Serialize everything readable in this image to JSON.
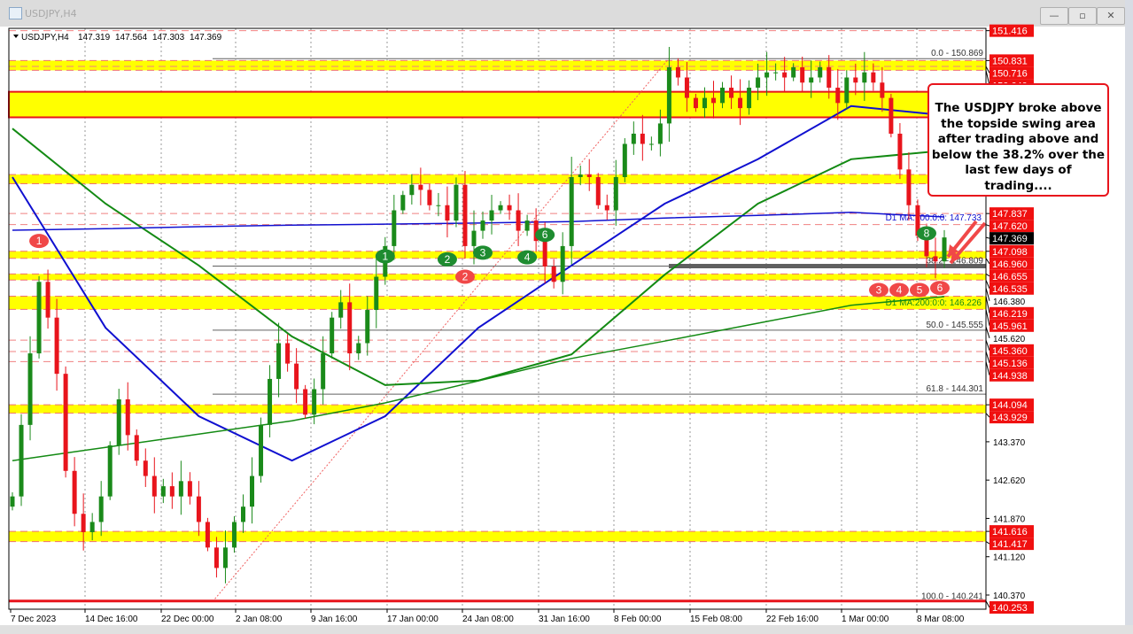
{
  "window": {
    "title": "USDJPY,H4",
    "buttons": {
      "minimize": "—",
      "maximize": "▫",
      "close": "✕"
    }
  },
  "header": {
    "symbol": "USDJPY,H4",
    "open": "147.319",
    "high": "147.564",
    "low": "147.303",
    "close": "147.369"
  },
  "annotation": "The USDJPY broke above the topside swing area after trading above and below the 38.2% over the last few days of trading....",
  "colors": {
    "bull": "#1a8a1a",
    "bear": "#e8141c",
    "ma_h4_blue": "#1010d0",
    "ma_h4_green": "#138a13",
    "zone": "#ffff00",
    "level": "#e8141c",
    "fib": "#606060"
  },
  "chart_data": {
    "type": "candlestick",
    "x_tick_labels": [
      "7 Dec 2023",
      "14 Dec 16:00",
      "22 Dec 00:00",
      "2 Jan 08:00",
      "9 Jan 16:00",
      "17 Jan 00:00",
      "24 Jan 08:00",
      "31 Jan 16:00",
      "8 Feb 00:00",
      "15 Feb 08:00",
      "22 Feb 16:00",
      "1 Mar 00:00",
      "8 Mar 08:00"
    ],
    "y_range": [
      140.0,
      151.7
    ],
    "y_tick_labels": [
      "145.620",
      "143.370",
      "142.620",
      "141.870",
      "141.120",
      "140.370",
      "146.380"
    ],
    "current_price": "147.369",
    "closes": [
      142.3,
      143.7,
      145.1,
      146.5,
      145.8,
      144.7,
      142.8,
      141.96,
      141.6,
      141.8,
      142.3,
      143.3,
      144.2,
      143.5,
      143.0,
      142.7,
      142.3,
      142.5,
      142.3,
      142.6,
      142.3,
      141.8,
      141.3,
      140.9,
      141.3,
      141.8,
      142.1,
      142.7,
      143.7,
      144.6,
      145.3,
      144.9,
      144.4,
      143.9,
      144.4,
      145.1,
      145.8,
      146.1,
      145.1,
      145.3,
      145.95,
      146.6,
      147.2,
      147.9,
      148.2,
      148.4,
      148.3,
      148.0,
      148.0,
      147.7,
      148.4,
      147.2,
      147.5,
      147.7,
      147.9,
      148.0,
      147.9,
      147.5,
      147.7,
      147.3,
      146.8,
      146.5,
      147.2,
      148.55,
      148.6,
      148.55,
      148.0,
      147.9,
      148.55,
      149.2,
      149.4,
      149.2,
      149.2,
      149.6,
      150.7,
      150.5,
      150.1,
      149.9,
      150.1,
      150.0,
      150.3,
      150.1,
      149.9,
      150.3,
      150.5,
      150.6,
      150.6,
      150.5,
      150.7,
      150.4,
      150.5,
      150.7,
      150.3,
      150.0,
      150.5,
      150.4,
      150.6,
      150.4,
      150.1,
      149.4,
      148.7,
      148.0,
      147.4,
      147.0,
      146.9,
      147.369
    ],
    "moving_averages": [
      {
        "name": "",
        "color": "#1010d0",
        "values": [
          148.55,
          145.6,
          143.87,
          143.0,
          143.87,
          145.6,
          146.82,
          148.03,
          148.9,
          149.94,
          149.76
        ]
      },
      {
        "name": "",
        "color": "#138a13",
        "values": [
          149.5,
          148.03,
          146.82,
          145.43,
          144.48,
          144.57,
          145.08,
          146.64,
          148.03,
          148.9,
          149.07
        ]
      },
      {
        "name": "D1 MA:100:0:0: 147.733",
        "color": "#1010d0",
        "values": [
          147.51,
          147.54,
          147.58,
          147.61,
          147.63,
          147.65,
          147.68,
          147.75,
          147.8,
          147.86,
          147.77
        ]
      },
      {
        "name": "D1 MA:200:0:0: 146.226",
        "color": "#138a13",
        "values": [
          143.0,
          143.26,
          143.52,
          143.78,
          144.13,
          144.56,
          145.0,
          145.34,
          145.69,
          146.04,
          146.21
        ]
      }
    ],
    "zones": [
      {
        "top": 150.831,
        "bottom": 150.64
      },
      {
        "top": 150.22,
        "bottom": 149.72,
        "solid_border": true
      },
      {
        "top": 148.6,
        "bottom": 148.42
      },
      {
        "top": 147.098,
        "bottom": 146.96
      },
      {
        "top": 146.655,
        "bottom": 146.535
      },
      {
        "top": 146.219,
        "bottom": 145.961
      },
      {
        "top": 144.094,
        "bottom": 143.929
      },
      {
        "top": 141.616,
        "bottom": 141.417
      }
    ],
    "dashed_levels": [
      151.416,
      150.716,
      147.837,
      147.62,
      145.36,
      145.136,
      144.938
    ],
    "price_labels": [
      "151.416",
      "150.831",
      "150.716",
      "150.640",
      "147.837",
      "147.620",
      "147.098",
      "146.960",
      "146.655",
      "146.535",
      "146.219",
      "145.961",
      "145.360",
      "145.136",
      "144.938",
      "144.094",
      "143.929",
      "141.616",
      "141.417",
      "140.253"
    ],
    "support_line": {
      "price": 140.253,
      "label": "140.253"
    },
    "fib_levels": [
      {
        "price": 150.869,
        "label": "0.0 - 150.869"
      },
      {
        "price": 146.809,
        "label": "38.2 - 146.809"
      },
      {
        "price": 145.555,
        "label": "50.0 - 145.555"
      },
      {
        "price": 144.301,
        "label": "61.8 - 144.301"
      },
      {
        "price": 140.241,
        "label": "100.0 - 140.241"
      }
    ],
    "markers": [
      {
        "label": "1",
        "color": "red",
        "bar": 3,
        "price": 147.3
      },
      {
        "label": "1",
        "color": "green",
        "bar": 42,
        "price": 147.0
      },
      {
        "label": "2",
        "color": "green",
        "bar": 49,
        "price": 146.94
      },
      {
        "label": "2",
        "color": "red",
        "bar": 51,
        "price": 146.6
      },
      {
        "label": "3",
        "color": "green",
        "bar": 53,
        "price": 147.07
      },
      {
        "label": "4",
        "color": "green",
        "bar": 58,
        "price": 146.98
      },
      {
        "label": "6",
        "color": "green",
        "bar": 60,
        "price": 147.42
      },
      {
        "label": "8",
        "color": "green",
        "bar": 103,
        "price": 147.45
      },
      {
        "label": "3",
        "color": "red",
        "bar": 102,
        "price": 146.34
      },
      {
        "label": "4",
        "color": "red",
        "bar": 103,
        "price": 146.34
      },
      {
        "label": "5",
        "color": "red",
        "bar": 104,
        "price": 146.34
      },
      {
        "label": "6",
        "color": "red",
        "bar": 105,
        "price": 146.38
      }
    ]
  }
}
